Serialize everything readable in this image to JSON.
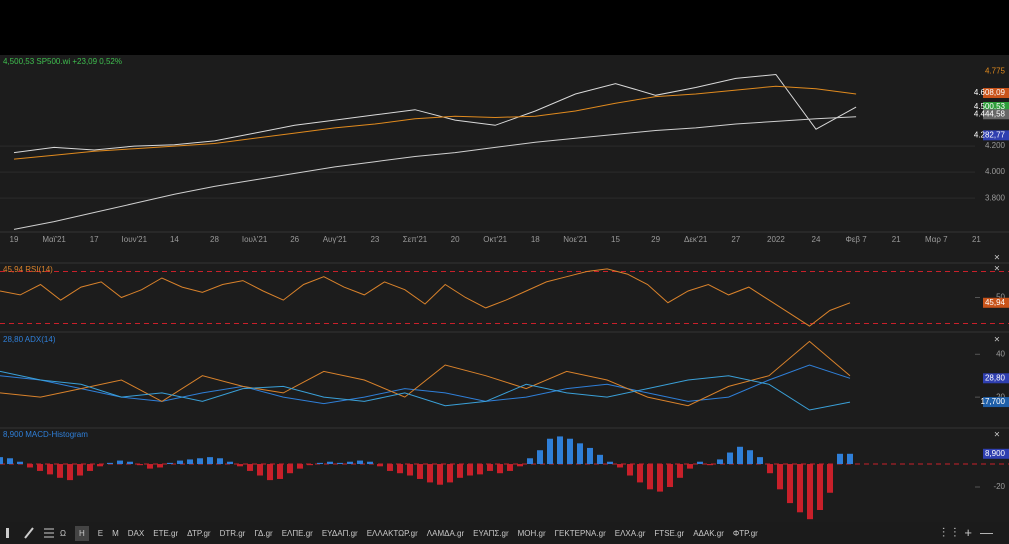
{
  "header": {
    "ticker_info": "4,500,53 SP500.wi +23,09 0,52%"
  },
  "chart_data": [
    {
      "type": "line",
      "categories": [
        "19",
        "Μαϊ'21",
        "17",
        "Ιουν'21",
        "14",
        "28",
        "Ιουλ'21",
        "26",
        "Αυγ'21",
        "23",
        "Σεπ'21",
        "20",
        "Οκτ'21",
        "18",
        "Νοε'21",
        "15",
        "29",
        "Δεκ'21",
        "27",
        "2022",
        "24",
        "Φεβ 7",
        "21",
        "Μαρ 7",
        "21"
      ],
      "series": [
        {
          "color": "#d9d9d9",
          "values": [
            4150,
            4190,
            4170,
            4200,
            4210,
            4240,
            4300,
            4360,
            4400,
            4440,
            4480,
            4400,
            4360,
            4470,
            4600,
            4680,
            4590,
            4650,
            4720,
            4750,
            4330,
            4500,
            null,
            null,
            null
          ]
        },
        {
          "color": "#e08a1e",
          "values": [
            4100,
            4130,
            4160,
            4180,
            4200,
            4220,
            4260,
            4300,
            4340,
            4370,
            4410,
            4430,
            4420,
            4430,
            4470,
            4530,
            4580,
            4600,
            4630,
            4660,
            4640,
            4600,
            null,
            null,
            null
          ]
        },
        {
          "color": "#cfcfcf",
          "values": [
            3560,
            3620,
            3690,
            3760,
            3830,
            3890,
            3940,
            3990,
            4040,
            4080,
            4120,
            4150,
            4190,
            4230,
            4260,
            4290,
            4320,
            4340,
            4370,
            4390,
            4410,
            4425,
            null,
            null,
            null
          ]
        }
      ],
      "ylim": [
        3540,
        4900
      ],
      "yticks": [
        {
          "value": 3800,
          "label": "3.800"
        },
        {
          "value": 4000,
          "label": "4.000"
        },
        {
          "value": 4200,
          "label": "4.200"
        }
      ],
      "price_labels": [
        {
          "value": 4775,
          "label": "4.775",
          "color": "#e08a1e",
          "boxed": false
        },
        {
          "value": 4608.09,
          "label": "4.608,09",
          "color": "#c9541b",
          "boxed": true
        },
        {
          "value": 4500.53,
          "label": "4.500,53",
          "color": "#2e9e3a",
          "boxed": true
        },
        {
          "value": 4444.58,
          "label": "4.444,58",
          "color": "#666666",
          "boxed": true
        },
        {
          "value": 4282.77,
          "label": "4.282,77",
          "color": "#2f3fb0",
          "boxed": true
        }
      ],
      "grid": true
    },
    {
      "type": "line",
      "title": "45,94 RSI(14)",
      "series": [
        {
          "color": "#d9822b",
          "values": [
            55,
            52,
            60,
            48,
            58,
            62,
            50,
            56,
            65,
            58,
            54,
            60,
            63,
            55,
            48,
            60,
            66,
            58,
            52,
            62,
            56,
            45,
            60,
            50,
            42,
            48,
            55,
            62,
            66,
            70,
            72,
            68,
            60,
            46,
            55,
            60,
            52,
            58,
            48,
            38,
            28,
            40,
            45.94
          ]
        }
      ],
      "ylim": [
        25,
        75
      ],
      "yticks": [
        50
      ],
      "levels": [
        70,
        30
      ],
      "current": [
        {
          "value": 45.94,
          "label": "45,94",
          "color": "#c9541b"
        }
      ]
    },
    {
      "type": "line",
      "title": "28,80 ADX(14)",
      "series": [
        {
          "color": "#2f7fd8",
          "values": [
            30,
            28,
            24,
            20,
            18,
            22,
            25,
            20,
            17,
            20,
            24,
            22,
            18,
            20,
            24,
            26,
            22,
            18,
            20,
            28,
            35,
            28.8
          ]
        },
        {
          "color": "#d9822b",
          "values": [
            22,
            20,
            24,
            28,
            18,
            30,
            25,
            22,
            32,
            28,
            20,
            35,
            30,
            24,
            32,
            28,
            20,
            16,
            25,
            30,
            46,
            30
          ]
        },
        {
          "color": "#3aa0d8",
          "values": [
            32,
            28,
            26,
            20,
            22,
            18,
            24,
            25,
            20,
            18,
            22,
            16,
            18,
            26,
            22,
            20,
            24,
            28,
            30,
            26,
            14,
            17.7
          ]
        }
      ],
      "ylim": [
        7,
        49
      ],
      "yticks": [
        20,
        40
      ],
      "current": [
        {
          "value": 28.8,
          "label": "28,80",
          "color": "#2f3fb0"
        },
        {
          "value": 17.7,
          "label": "17,700",
          "color": "#1f5fa8"
        }
      ]
    },
    {
      "type": "histogram",
      "title": "8,900 MACD-Histogram",
      "values": [
        6,
        5,
        2,
        -3,
        -6,
        -9,
        -12,
        -14,
        -10,
        -6,
        -2,
        1,
        3,
        2,
        -1,
        -4,
        -3,
        1,
        3,
        4,
        5,
        6,
        5,
        2,
        -2,
        -6,
        -10,
        -14,
        -13,
        -8,
        -4,
        -1,
        1,
        2,
        1,
        2,
        3,
        2,
        -2,
        -6,
        -8,
        -10,
        -13,
        -16,
        -18,
        -16,
        -12,
        -10,
        -9,
        -6,
        -8,
        -6,
        -2,
        5,
        12,
        22,
        24,
        22,
        18,
        14,
        8,
        2,
        -3,
        -10,
        -16,
        -22,
        -24,
        -20,
        -12,
        -4,
        2,
        -1,
        4,
        10,
        15,
        12,
        6,
        -8,
        -22,
        -34,
        -42,
        -48,
        -40,
        -25,
        8.9,
        8.9
      ],
      "colors": {
        "positive": "#2f7fd8",
        "negative": "#c8202a"
      },
      "ylim": [
        -48.7,
        29.6
      ],
      "yticks": [
        -20
      ],
      "levels": [
        0
      ],
      "current": [
        {
          "value": 8.9,
          "label": "8,900",
          "color": "#2f3fb0"
        }
      ]
    }
  ],
  "toolbar": {
    "items": [
      "Ω",
      "Η",
      "Ε",
      "Μ",
      "DAX",
      "ΕΤΕ.gr",
      "ΔΤΡ.gr",
      "DTR.gr",
      "ΓΔ.gr",
      "ΕΛΠΕ.gr",
      "ΕΥΔΑΠ.gr",
      "ΕΛΛΑΚΤΩΡ.gr",
      "ΛΑΜΔΑ.gr",
      "ΕΥΑΠΣ.gr",
      "ΜΟΗ.gr",
      "ΓΕΚΤΕΡΝΑ.gr",
      "ΕΛΧΑ.gr",
      "FTSE.gr",
      "ΑΔΑΚ.gr",
      "ΦΤΡ.gr"
    ],
    "selected": 1
  }
}
